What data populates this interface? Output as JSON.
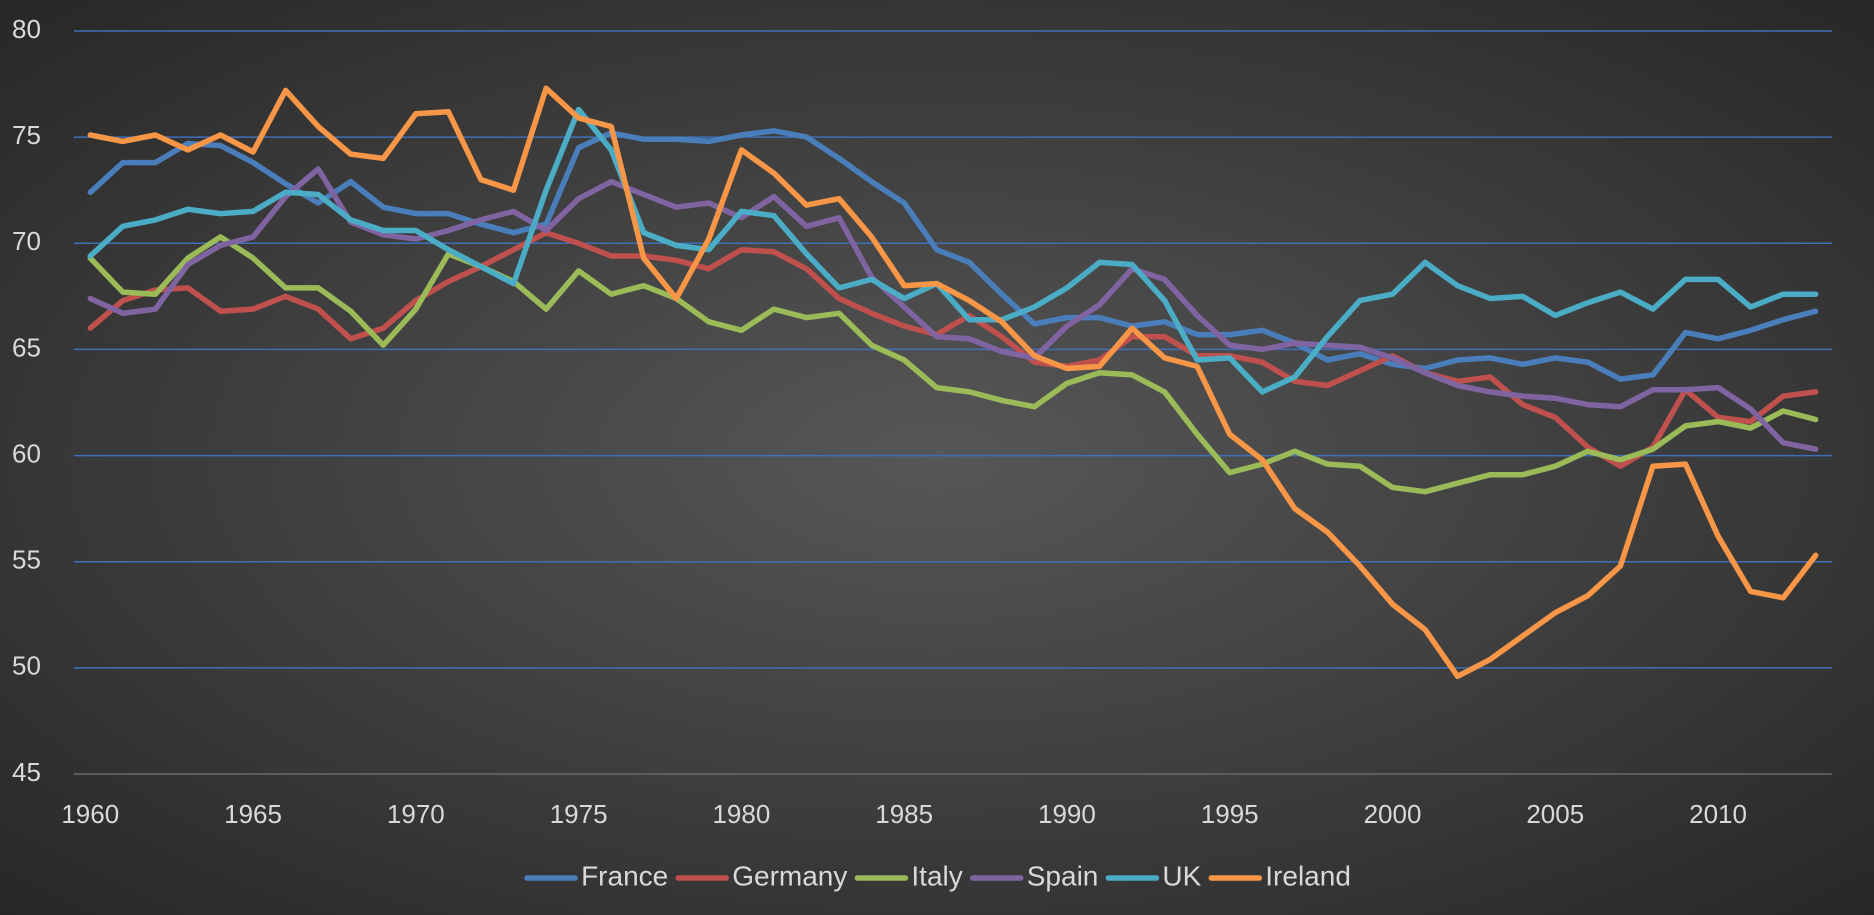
{
  "chart_data": {
    "type": "line",
    "x": [
      1960,
      1961,
      1962,
      1963,
      1964,
      1965,
      1966,
      1967,
      1968,
      1969,
      1970,
      1971,
      1972,
      1973,
      1974,
      1975,
      1976,
      1977,
      1978,
      1979,
      1980,
      1981,
      1982,
      1983,
      1984,
      1985,
      1986,
      1987,
      1988,
      1989,
      1990,
      1991,
      1992,
      1993,
      1994,
      1995,
      1996,
      1997,
      1998,
      1999,
      2000,
      2001,
      2002,
      2003,
      2004,
      2005,
      2006,
      2007,
      2008,
      2009,
      2010,
      2011,
      2012,
      2013
    ],
    "xlim": [
      1959.5,
      2013.5
    ],
    "xticks": [
      1960,
      1965,
      1970,
      1975,
      1980,
      1985,
      1990,
      1995,
      2000,
      2005,
      2010
    ],
    "ylim": [
      45,
      80
    ],
    "yticks": [
      45,
      50,
      55,
      60,
      65,
      70,
      75,
      80
    ],
    "grid": true,
    "legend": "bottom",
    "series": [
      {
        "name": "France",
        "color": "#4a7ebb",
        "values": [
          72.4,
          73.8,
          73.8,
          74.7,
          74.6,
          73.8,
          72.8,
          71.9,
          72.9,
          71.7,
          71.4,
          71.4,
          70.9,
          70.5,
          70.9,
          74.5,
          75.2,
          74.9,
          74.9,
          74.8,
          75.1,
          75.3,
          75.0,
          74.0,
          72.9,
          71.9,
          69.7,
          69.1,
          67.6,
          66.2,
          66.5,
          66.5,
          66.1,
          66.3,
          65.7,
          65.7,
          65.9,
          65.3,
          64.5,
          64.8,
          64.3,
          64.1,
          64.5,
          64.6,
          64.3,
          64.6,
          64.4,
          63.6,
          63.8,
          65.8,
          65.5,
          65.9,
          66.4,
          66.8
        ]
      },
      {
        "name": "Germany",
        "color": "#c0504d",
        "values": [
          66.0,
          67.3,
          67.8,
          67.9,
          66.8,
          66.9,
          67.5,
          66.9,
          65.5,
          66.0,
          67.3,
          68.2,
          68.9,
          69.7,
          70.5,
          70.0,
          69.4,
          69.4,
          69.2,
          68.8,
          69.7,
          69.6,
          68.8,
          67.4,
          66.7,
          66.1,
          65.7,
          66.6,
          65.6,
          64.4,
          64.2,
          64.5,
          65.6,
          65.6,
          64.7,
          64.7,
          64.4,
          63.5,
          63.3,
          64.0,
          64.7,
          63.9,
          63.5,
          63.7,
          62.4,
          61.8,
          60.4,
          59.5,
          60.4,
          63.1,
          61.8,
          61.6,
          62.8,
          63.0
        ]
      },
      {
        "name": "Italy",
        "color": "#9bbb59",
        "values": [
          69.3,
          67.7,
          67.6,
          69.3,
          70.3,
          69.3,
          67.9,
          67.9,
          66.8,
          65.2,
          66.9,
          69.5,
          68.9,
          68.2,
          66.9,
          68.7,
          67.6,
          68.0,
          67.4,
          66.3,
          65.9,
          66.9,
          66.5,
          66.7,
          65.2,
          64.5,
          63.2,
          63.0,
          62.6,
          62.3,
          63.4,
          63.9,
          63.8,
          63.0,
          61.0,
          59.2,
          59.6,
          60.2,
          59.6,
          59.5,
          58.5,
          58.3,
          58.7,
          59.1,
          59.1,
          59.5,
          60.2,
          59.8,
          60.3,
          61.4,
          61.6,
          61.3,
          62.1,
          61.7
        ]
      },
      {
        "name": "Spain",
        "color": "#8064a2",
        "values": [
          67.4,
          66.7,
          66.9,
          69.0,
          69.9,
          70.3,
          72.2,
          73.5,
          71.0,
          70.4,
          70.2,
          70.6,
          71.1,
          71.5,
          70.6,
          72.1,
          72.9,
          72.3,
          71.7,
          71.9,
          71.2,
          72.2,
          70.8,
          71.2,
          68.4,
          67.0,
          65.6,
          65.5,
          64.9,
          64.6,
          66.1,
          67.1,
          68.8,
          68.3,
          66.6,
          65.2,
          65.0,
          65.3,
          65.2,
          65.1,
          64.6,
          63.9,
          63.3,
          63.0,
          62.8,
          62.7,
          62.4,
          62.3,
          63.1,
          63.1,
          63.2,
          62.2,
          60.6,
          60.3
        ]
      },
      {
        "name": "UK",
        "color": "#4bacc6",
        "values": [
          69.4,
          70.8,
          71.1,
          71.6,
          71.4,
          71.5,
          72.4,
          72.3,
          71.1,
          70.6,
          70.6,
          69.7,
          68.9,
          68.1,
          72.5,
          76.3,
          74.4,
          70.5,
          69.9,
          69.7,
          71.5,
          71.3,
          69.5,
          67.9,
          68.3,
          67.4,
          68.1,
          66.4,
          66.4,
          67.0,
          67.9,
          69.1,
          69.0,
          67.3,
          64.5,
          64.6,
          63.0,
          63.7,
          65.6,
          67.3,
          67.6,
          69.1,
          68.0,
          67.4,
          67.5,
          66.6,
          67.2,
          67.7,
          66.9,
          68.3,
          68.3,
          67.0,
          67.6,
          67.6
        ]
      },
      {
        "name": "Ireland",
        "color": "#f79646",
        "values": [
          75.1,
          74.8,
          75.1,
          74.4,
          75.1,
          74.3,
          77.2,
          75.5,
          74.2,
          74.0,
          76.1,
          76.2,
          73.0,
          72.5,
          77.3,
          75.9,
          75.5,
          69.3,
          67.4,
          70.2,
          74.4,
          73.3,
          71.8,
          72.1,
          70.3,
          68.0,
          68.1,
          67.3,
          66.3,
          64.7,
          64.1,
          64.2,
          66.0,
          64.6,
          64.2,
          61.0,
          59.8,
          57.5,
          56.4,
          54.8,
          53.0,
          51.8,
          49.6,
          50.4,
          51.5,
          52.6,
          53.4,
          54.8,
          59.5,
          59.6,
          56.2,
          53.6,
          53.3,
          55.3
        ]
      }
    ]
  }
}
